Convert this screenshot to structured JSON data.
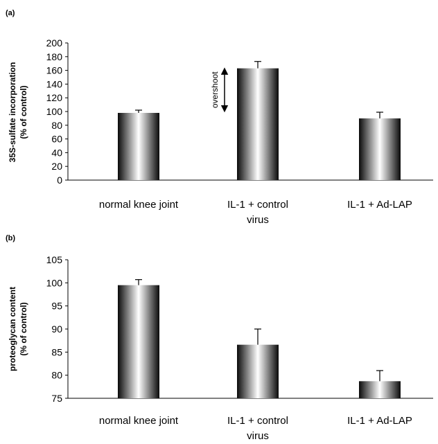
{
  "chart_data": [
    {
      "type": "bar",
      "panel_label": "(a)",
      "title": "",
      "ylabel_lines": [
        "35S-sulfate incorporation",
        "(% of control)"
      ],
      "xlabel": "",
      "ylim": [
        0,
        200
      ],
      "yticks": [
        0,
        20,
        40,
        60,
        80,
        100,
        120,
        140,
        160,
        180,
        200
      ],
      "categories": [
        [
          "normal knee joint"
        ],
        [
          "IL-1 + control",
          "virus"
        ],
        [
          "IL-1 + Ad-LAP"
        ]
      ],
      "values": [
        98,
        163,
        90
      ],
      "errors": [
        4,
        10,
        9
      ],
      "annotation": {
        "text": "overshoot",
        "from": 100,
        "to": 163,
        "category_index": 1
      }
    },
    {
      "type": "bar",
      "panel_label": "(b)",
      "title": "",
      "ylabel_lines": [
        "proteoglycan content",
        "(% of control)"
      ],
      "xlabel": "",
      "ylim": [
        75,
        105
      ],
      "yticks": [
        75,
        80,
        85,
        90,
        95,
        100,
        105
      ],
      "categories": [
        [
          "normal knee joint"
        ],
        [
          "IL-1 + control",
          "virus"
        ],
        [
          "IL-1 + Ad-LAP"
        ]
      ],
      "values": [
        99.5,
        86.6,
        78.7
      ],
      "errors": [
        1.2,
        3.4,
        2.3
      ]
    }
  ]
}
